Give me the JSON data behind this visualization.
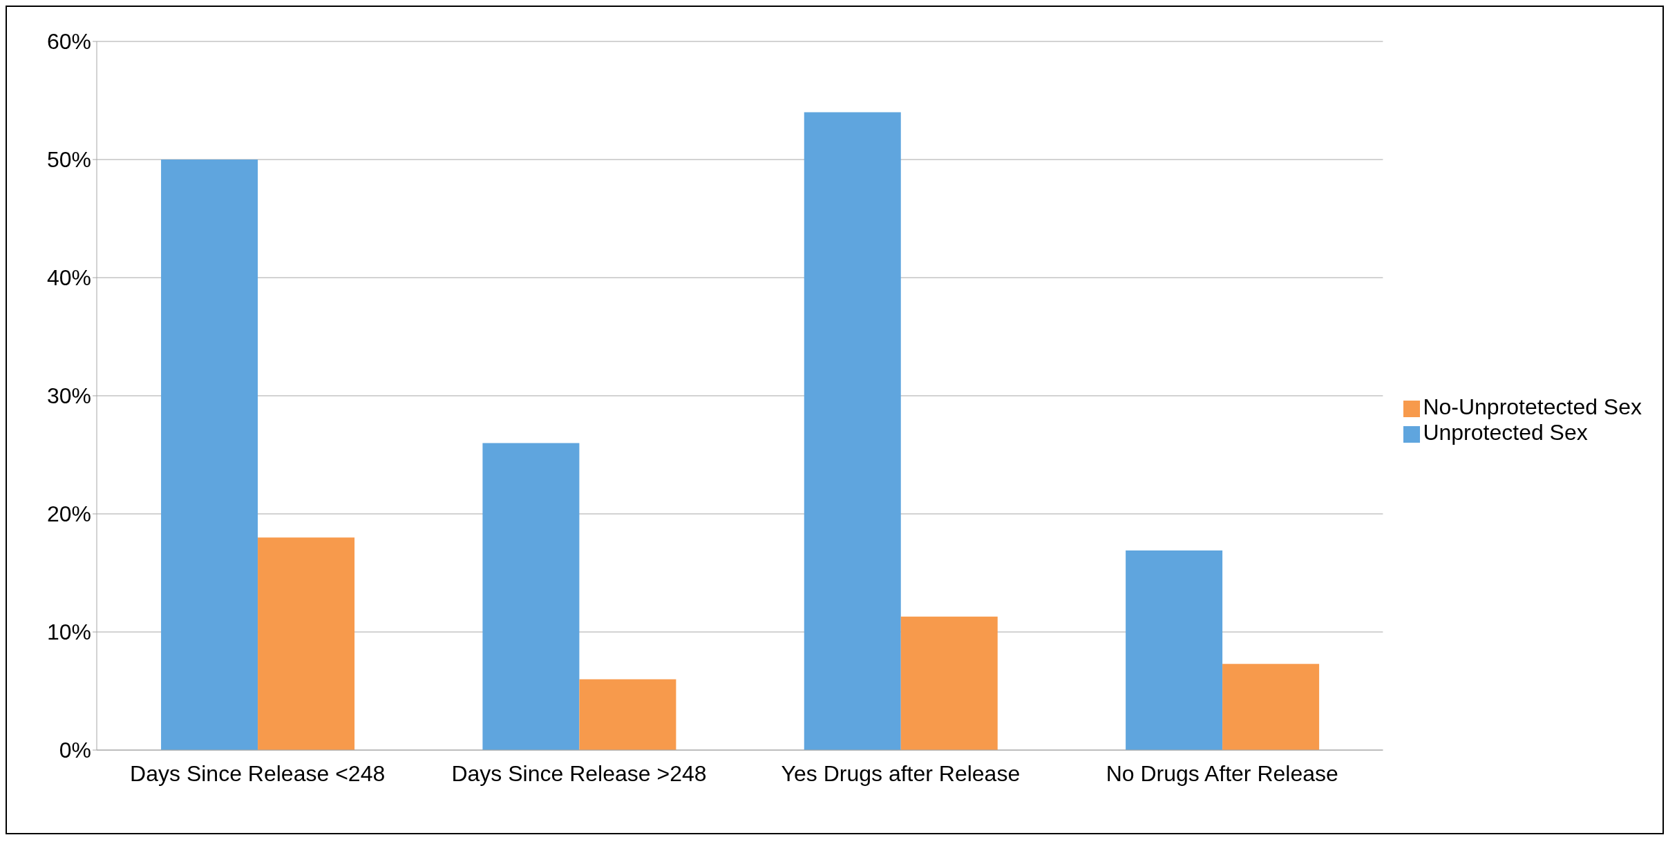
{
  "chart_data": {
    "type": "bar",
    "categories": [
      "Days Since Release <248",
      "Days Since Release >248",
      "Yes Drugs after Release",
      "No Drugs After Release"
    ],
    "series": [
      {
        "name": "Unprotected Sex",
        "color": "#5fa5de",
        "values": [
          50,
          26,
          54,
          16.9
        ]
      },
      {
        "name": "No-Unprotetected Sex",
        "color": "#f79a4c",
        "values": [
          18,
          6,
          11.3,
          7.3
        ]
      }
    ],
    "ylim": [
      0,
      60
    ],
    "yticks": [
      {
        "value": 0,
        "label": "0%"
      },
      {
        "value": 10,
        "label": "10%"
      },
      {
        "value": 20,
        "label": "20%"
      },
      {
        "value": 30,
        "label": "30%"
      },
      {
        "value": 40,
        "label": "40%"
      },
      {
        "value": 50,
        "label": "50%"
      },
      {
        "value": 60,
        "label": "60%"
      }
    ],
    "grid": "y",
    "legend": "right"
  }
}
